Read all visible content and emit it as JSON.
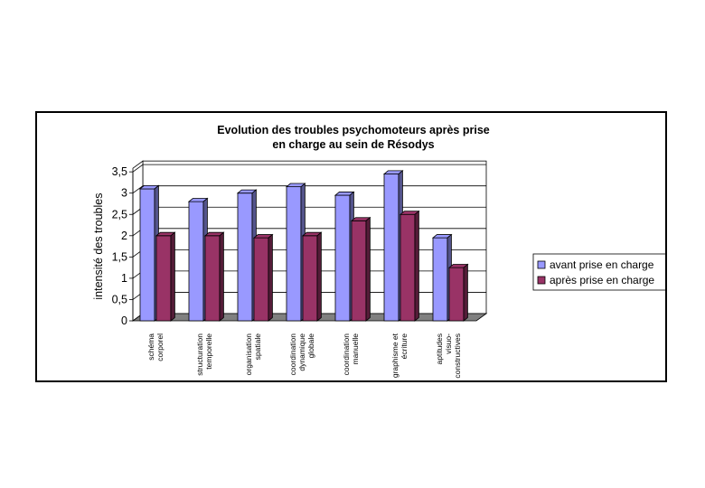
{
  "chart_data": {
    "type": "bar",
    "title": "Evolution des troubles psychomoteurs après prise en charge au sein de Résodys",
    "title_lines": [
      "Evolution des troubles psychomoteurs après prise",
      "en charge au sein de Résodys"
    ],
    "xlabel": "",
    "ylabel": "intensité des troubles",
    "ylim": [
      0,
      3.5
    ],
    "yticks": [
      "0",
      "0,5",
      "1",
      "1,5",
      "2",
      "2,5",
      "3",
      "3,5"
    ],
    "grid": true,
    "legend_position": "right",
    "categories": [
      [
        "schéma",
        "corporel"
      ],
      [
        "structuration",
        "temporelle"
      ],
      [
        "organisation",
        "spatiale"
      ],
      [
        "coordination",
        "dynamique",
        "globale"
      ],
      [
        "coordination",
        "manuelle"
      ],
      [
        "graphisme et",
        "écriture"
      ],
      [
        "aptitudes",
        "visuo-",
        "constructives"
      ]
    ],
    "series": [
      {
        "name": "avant prise en charge",
        "color": "#9999ff",
        "values": [
          3.1,
          2.8,
          3.0,
          3.15,
          2.95,
          3.45,
          1.95
        ]
      },
      {
        "name": "après prise en charge",
        "color": "#993366",
        "values": [
          2.0,
          2.0,
          1.95,
          2.0,
          2.35,
          2.5,
          1.25
        ]
      }
    ]
  }
}
